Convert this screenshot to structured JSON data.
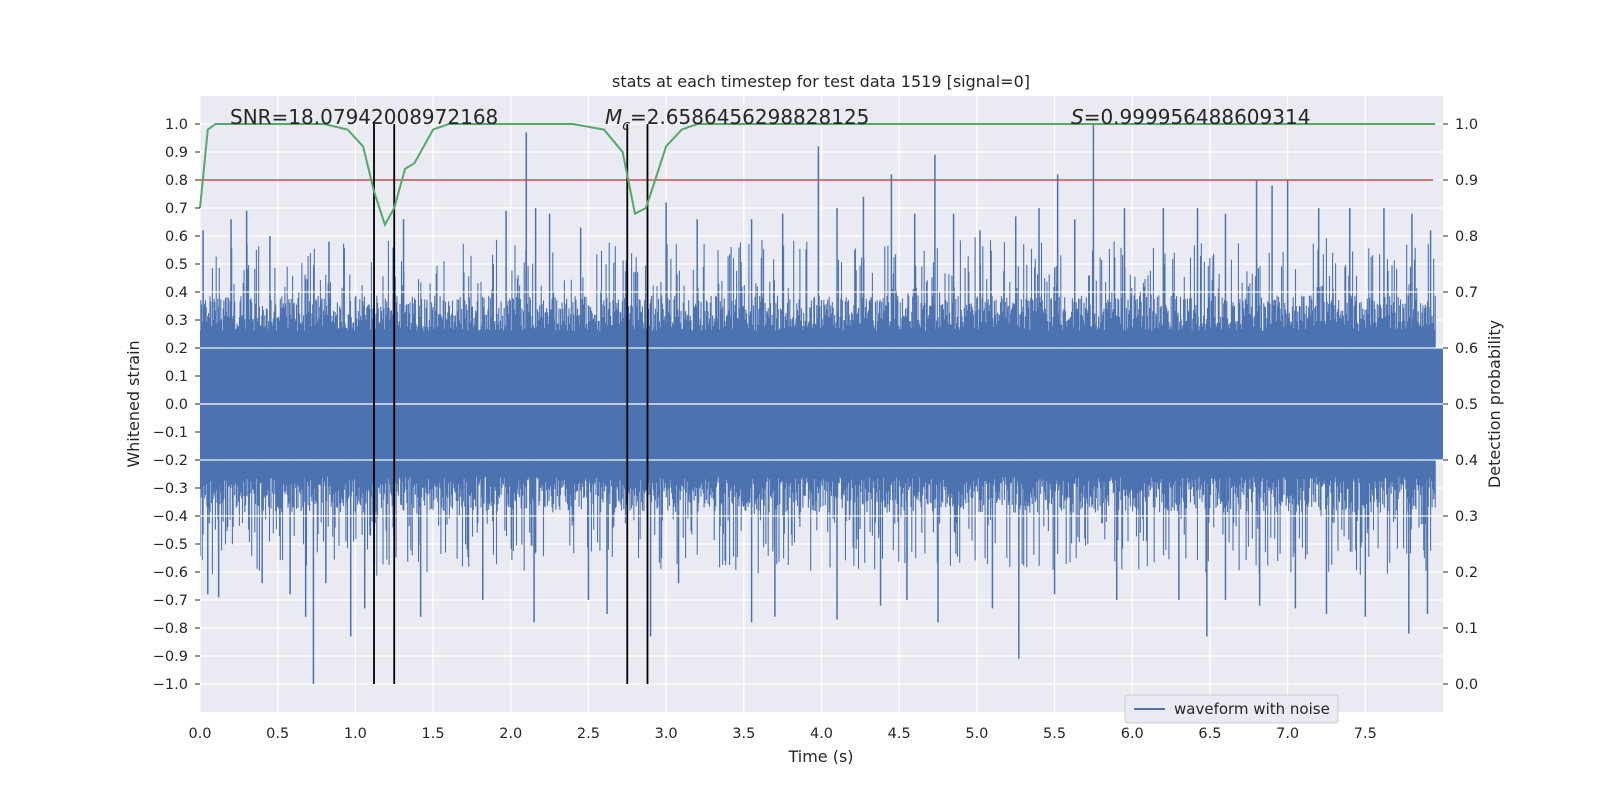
{
  "chart_data": {
    "type": "line",
    "title": "stats at each timestep for test data 1519 [signal=0]",
    "xlabel": "Time (s)",
    "ylabel": "Whitened strain",
    "ylabel_right": "Detection probability",
    "xlim": [
      0.0,
      8.0
    ],
    "ylim": [
      -1.1,
      1.1
    ],
    "ylim_right": [
      -0.05,
      1.05
    ],
    "x_ticks": [
      "0.0",
      "0.5",
      "1.0",
      "1.5",
      "2.0",
      "2.5",
      "3.0",
      "3.5",
      "4.0",
      "4.5",
      "5.0",
      "5.5",
      "6.0",
      "6.5",
      "7.0",
      "7.5"
    ],
    "y_ticks": [
      "1.0",
      "0.9",
      "0.8",
      "0.7",
      "0.6",
      "0.5",
      "0.4",
      "0.3",
      "0.2",
      "0.1",
      "0.0",
      "−0.1",
      "−0.2",
      "−0.3",
      "−0.4",
      "−0.5",
      "−0.6",
      "−0.7",
      "−0.8",
      "−0.9",
      "−1.0"
    ],
    "y_ticks_right": [
      "1.0",
      "0.9",
      "0.8",
      "0.7",
      "0.6",
      "0.5",
      "0.4",
      "0.3",
      "0.2",
      "0.1",
      "0.0"
    ],
    "grid": true,
    "legend": {
      "placement": "lower-right",
      "entries": [
        "waveform with noise"
      ]
    },
    "series": [
      {
        "name": "waveform with noise",
        "axis": "left",
        "color": "#4c72b0",
        "description": "dense noisy strain, typical amplitude within ±0.4, peaks up to 1.0 and down to -1.0"
      },
      {
        "axis": "right",
        "color": "#55a868",
        "x": [
          0.0,
          0.05,
          0.1,
          0.2,
          0.5,
          0.8,
          0.95,
          1.05,
          1.12,
          1.19,
          1.25,
          1.32,
          1.38,
          1.5,
          1.6,
          2.0,
          2.4,
          2.6,
          2.72,
          2.8,
          2.87,
          2.93,
          3.0,
          3.1,
          3.2,
          3.5,
          4.0,
          5.0,
          6.0,
          7.0,
          7.95
        ],
        "values": [
          0.85,
          0.99,
          1.0,
          1.0,
          1.0,
          1.0,
          0.99,
          0.96,
          0.88,
          0.82,
          0.85,
          0.92,
          0.93,
          0.99,
          1.0,
          1.0,
          1.0,
          0.99,
          0.95,
          0.84,
          0.85,
          0.9,
          0.96,
          0.99,
          1.0,
          1.0,
          1.0,
          1.0,
          1.0,
          1.0,
          1.0
        ]
      }
    ],
    "threshold": {
      "axis": "right",
      "value": 0.9,
      "color": "#c44e52"
    },
    "vertical_lines": [
      1.12,
      1.25,
      2.75,
      2.88
    ],
    "annotations": {
      "snr": "SNR=18.07942008972168",
      "mc_symbol": "M",
      "mc_sub": "c",
      "mc_value": "=2.6586456298828125",
      "s_symbol": "S",
      "s_value": "=0.999956488609314"
    },
    "peaks_up": [
      [
        0.02,
        0.62
      ],
      [
        0.2,
        0.66
      ],
      [
        0.3,
        0.69
      ],
      [
        0.45,
        0.6
      ],
      [
        0.83,
        0.58
      ],
      [
        1.31,
        0.66
      ],
      [
        1.97,
        0.69
      ],
      [
        2.1,
        0.97
      ],
      [
        2.16,
        0.7
      ],
      [
        2.25,
        0.68
      ],
      [
        2.45,
        0.63
      ],
      [
        2.88,
        0.7
      ],
      [
        3.0,
        0.72
      ],
      [
        3.2,
        0.66
      ],
      [
        3.55,
        0.66
      ],
      [
        3.75,
        0.68
      ],
      [
        3.98,
        0.92
      ],
      [
        4.1,
        0.7
      ],
      [
        4.27,
        0.74
      ],
      [
        4.45,
        0.82
      ],
      [
        4.6,
        0.68
      ],
      [
        4.73,
        0.89
      ],
      [
        4.85,
        0.68
      ],
      [
        5.02,
        0.62
      ],
      [
        5.25,
        0.67
      ],
      [
        5.4,
        0.7
      ],
      [
        5.52,
        0.82
      ],
      [
        5.63,
        0.66
      ],
      [
        5.75,
        1.0
      ],
      [
        5.95,
        0.7
      ],
      [
        6.2,
        0.7
      ],
      [
        6.42,
        0.7
      ],
      [
        6.6,
        0.68
      ],
      [
        6.8,
        0.8
      ],
      [
        6.9,
        0.78
      ],
      [
        7.0,
        0.8
      ],
      [
        7.2,
        0.7
      ],
      [
        7.4,
        0.7
      ],
      [
        7.62,
        0.7
      ],
      [
        7.8,
        0.68
      ],
      [
        7.92,
        0.62
      ]
    ],
    "peaks_down": [
      [
        0.05,
        -0.68
      ],
      [
        0.12,
        -0.69
      ],
      [
        0.4,
        -0.64
      ],
      [
        0.58,
        -0.68
      ],
      [
        0.68,
        -0.76
      ],
      [
        0.73,
        -1.0
      ],
      [
        0.81,
        -0.64
      ],
      [
        0.97,
        -0.83
      ],
      [
        1.06,
        -0.73
      ],
      [
        1.42,
        -0.76
      ],
      [
        1.82,
        -0.7
      ],
      [
        2.15,
        -0.78
      ],
      [
        2.5,
        -0.7
      ],
      [
        2.62,
        -0.75
      ],
      [
        2.9,
        -0.83
      ],
      [
        3.08,
        -0.64
      ],
      [
        3.55,
        -0.78
      ],
      [
        3.7,
        -0.76
      ],
      [
        4.1,
        -0.77
      ],
      [
        4.38,
        -0.72
      ],
      [
        4.55,
        -0.7
      ],
      [
        4.75,
        -0.78
      ],
      [
        5.1,
        -0.73
      ],
      [
        5.27,
        -0.91
      ],
      [
        5.5,
        -0.68
      ],
      [
        5.9,
        -0.7
      ],
      [
        6.3,
        -0.7
      ],
      [
        6.48,
        -0.83
      ],
      [
        6.6,
        -0.7
      ],
      [
        6.82,
        -0.72
      ],
      [
        7.05,
        -0.73
      ],
      [
        7.25,
        -0.75
      ],
      [
        7.5,
        -0.76
      ],
      [
        7.78,
        -0.82
      ],
      [
        7.9,
        -0.75
      ]
    ]
  }
}
